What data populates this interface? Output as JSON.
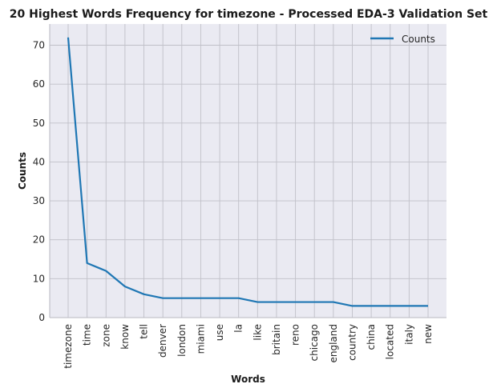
{
  "chart_data": {
    "type": "line",
    "title": "20 Highest Words Frequency for timezone - Processed EDA-3 Validation Set",
    "xlabel": "Words",
    "ylabel": "Counts",
    "categories": [
      "timezone",
      "time",
      "zone",
      "know",
      "tell",
      "denver",
      "london",
      "miami",
      "use",
      "la",
      "like",
      "britain",
      "reno",
      "chicago",
      "england",
      "country",
      "china",
      "located",
      "italy",
      "new"
    ],
    "series": [
      {
        "name": "Counts",
        "values": [
          72,
          14,
          12,
          8,
          6,
          5,
          5,
          5,
          5,
          5,
          4,
          4,
          4,
          4,
          4,
          3,
          3,
          3,
          3,
          3
        ],
        "color": "#1f77b4"
      }
    ],
    "ylim": [
      0,
      75.45
    ],
    "yticks": [
      0,
      10,
      20,
      30,
      40,
      50,
      60,
      70
    ],
    "grid": true,
    "legend_position": "top-right",
    "background_color": "#eaeaf2",
    "grid_color": "#c0c0c8"
  }
}
